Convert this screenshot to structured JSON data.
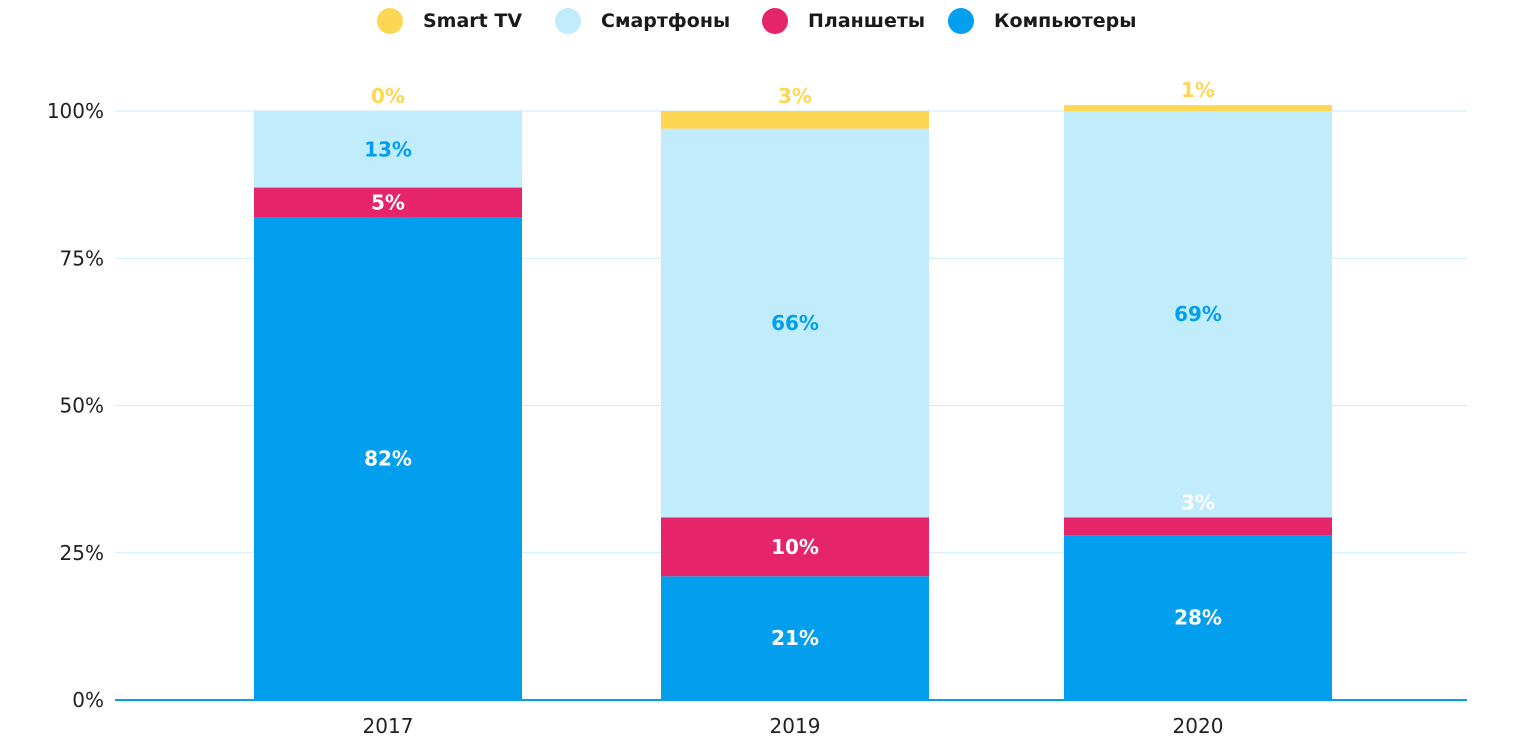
{
  "chart_data": {
    "type": "bar",
    "stacked": true,
    "categories": [
      "2017",
      "2019",
      "2020"
    ],
    "series": [
      {
        "name": "Компьютеры",
        "color": "#039fef",
        "label_color": "#ffffff",
        "values": [
          82,
          21,
          28
        ],
        "labels": [
          "82%",
          "21%",
          "28%"
        ]
      },
      {
        "name": "Планшеты",
        "color": "#e5246a",
        "label_color": "#ffffff",
        "values": [
          5,
          10,
          3
        ],
        "labels": [
          "5%",
          "10%",
          "3%"
        ]
      },
      {
        "name": "Смартфоны",
        "color": "#c0ecfc",
        "label_color": "#039fef",
        "values": [
          13,
          66,
          69
        ],
        "labels": [
          "13%",
          "66%",
          "69%"
        ]
      },
      {
        "name": "Smart TV",
        "color": "#fdd754",
        "label_color": "#fdd754",
        "inside_label_color": "#ffffff",
        "values": [
          0,
          3,
          1
        ],
        "labels": [
          "0%",
          "3%",
          "1%"
        ]
      }
    ],
    "legend_order": [
      "Smart TV",
      "Смартфоны",
      "Планшеты",
      "Компьютеры"
    ],
    "legend_position": "top-center",
    "ylim": [
      0,
      100
    ],
    "yticks": [
      0,
      25,
      50,
      75,
      100
    ],
    "ytick_labels": [
      "0%",
      "25%",
      "50%",
      "75%",
      "100%"
    ],
    "grid": true,
    "grid_color": "#c8eefa",
    "axis_color": "#039fef"
  }
}
